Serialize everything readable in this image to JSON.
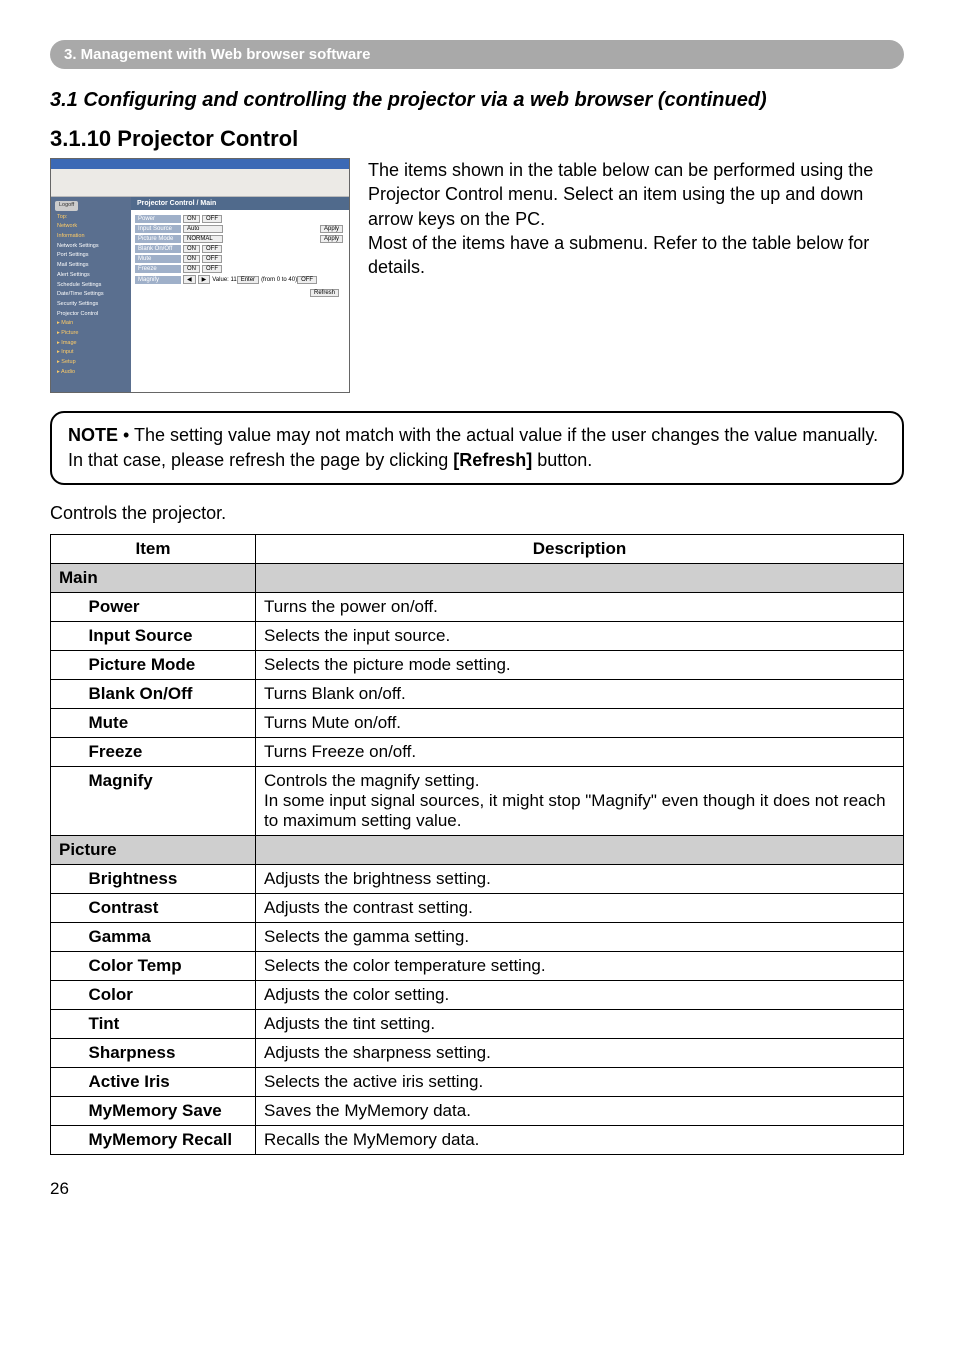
{
  "banner": "3. Management with Web browser software",
  "heading": "3.1 Configuring and controlling the projector via a web browser (continued)",
  "subheading": "3.1.10 Projector Control",
  "screenshot": {
    "panel_title": "Projector Control / Main",
    "sidebar": {
      "logoff": "Logoff",
      "items": [
        "Top:",
        "Network",
        "Information",
        "Network Settings",
        "Port Settings",
        "Mail Settings",
        "Alert Settings",
        "Schedule Settings",
        "Date/Time Settings",
        "Security Settings",
        "Projector Control"
      ],
      "subs": [
        "▸ Main",
        "▸ Picture",
        "▸ Image",
        "▸ Input",
        "▸ Setup",
        "▸ Audio"
      ]
    },
    "rows": [
      {
        "label": "Power",
        "ctl": [
          "ON",
          "OFF"
        ]
      },
      {
        "label": "Input Source",
        "ctl": [
          "Auto"
        ]
      },
      {
        "label": "Picture Mode",
        "ctl": [
          "NORMAL"
        ]
      },
      {
        "label": "Blank On/Off",
        "ctl": [
          "ON",
          "OFF"
        ]
      },
      {
        "label": "Mute",
        "ctl": [
          "ON",
          "OFF"
        ]
      },
      {
        "label": "Freeze",
        "ctl": [
          "ON",
          "OFF"
        ]
      },
      {
        "label": "Magnify",
        "ctl": [
          "◀",
          "▶",
          "Value: 11",
          "Enter",
          "(from 0 to 40)",
          "OFF"
        ]
      }
    ],
    "apply": "Apply",
    "refresh": "Refresh"
  },
  "intro": "The items shown in the table below can be performed using the Projector Control menu. Select an item using the up and down arrow keys on the PC.\nMost of the items have a submenu. Refer to the table below for details.",
  "note": {
    "label": "NOTE",
    "body": " • The setting value may not match with the actual value if the user changes the value manually. In that case, please refresh the page by clicking ",
    "bold": "[Refresh]",
    "tail": " button."
  },
  "controls_line": "Controls the projector.",
  "table": {
    "headers": [
      "Item",
      "Description"
    ],
    "groups": [
      {
        "name": "Main",
        "rows": [
          {
            "item": "Power",
            "desc": "Turns the power on/off."
          },
          {
            "item": "Input Source",
            "desc": "Selects the input source."
          },
          {
            "item": "Picture Mode",
            "desc": "Selects the picture mode setting."
          },
          {
            "item": "Blank On/Off",
            "desc": "Turns Blank on/off."
          },
          {
            "item": "Mute",
            "desc": "Turns Mute on/off."
          },
          {
            "item": "Freeze",
            "desc": "Turns Freeze on/off."
          },
          {
            "item": "Magnify",
            "desc": "Controls the magnify setting.\nIn some input signal sources, it might stop \"Magnify\" even though it does not reach to maximum setting value."
          }
        ]
      },
      {
        "name": "Picture",
        "rows": [
          {
            "item": "Brightness",
            "desc": "Adjusts the brightness setting."
          },
          {
            "item": "Contrast",
            "desc": "Adjusts the contrast setting."
          },
          {
            "item": "Gamma",
            "desc": "Selects the gamma setting."
          },
          {
            "item": "Color Temp",
            "desc": "Selects the color temperature setting."
          },
          {
            "item": "Color",
            "desc": "Adjusts the color setting."
          },
          {
            "item": "Tint",
            "desc": "Adjusts the tint setting."
          },
          {
            "item": "Sharpness",
            "desc": "Adjusts the sharpness setting."
          },
          {
            "item": "Active Iris",
            "desc": "Selects the active iris setting."
          },
          {
            "item": "MyMemory Save",
            "desc": "Saves the MyMemory data."
          },
          {
            "item": "MyMemory Recall",
            "desc": "Recalls the MyMemory data."
          }
        ]
      }
    ]
  },
  "page_number": "26"
}
